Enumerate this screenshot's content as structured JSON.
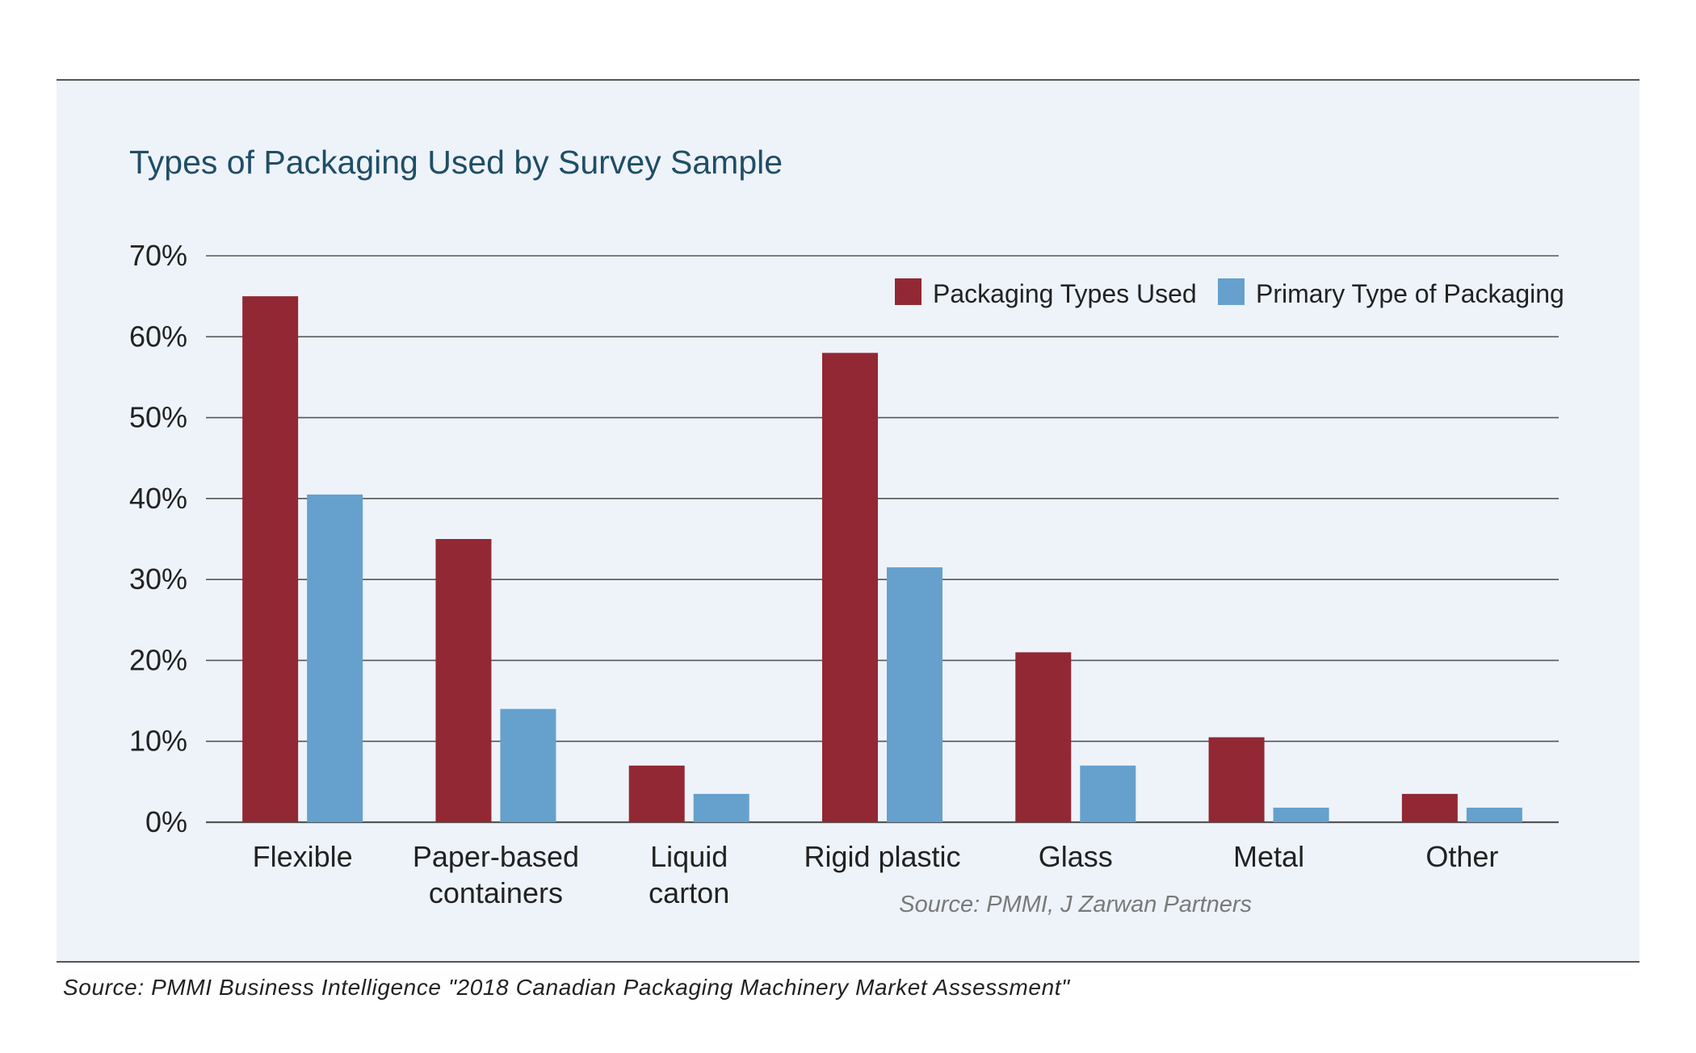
{
  "colors": {
    "panel_background": "#eef3fa",
    "series_used": "#922833",
    "series_primary": "#66a0cc",
    "title": "#1f4e66",
    "gridline": "#555555"
  },
  "footer": {
    "source": "Source: PMMI Business Intelligence \"2018 Canadian Packaging Machinery Market Assessment\""
  },
  "chart_data": {
    "type": "bar",
    "title": "Types of Packaging Used by Survey Sample",
    "source_note": "Source: PMMI, J Zarwan Partners",
    "categories": [
      [
        "Flexible"
      ],
      [
        "Paper-based",
        "containers"
      ],
      [
        "Liquid",
        "carton"
      ],
      [
        "Rigid plastic"
      ],
      [
        "Glass"
      ],
      [
        "Metal"
      ],
      [
        "Other"
      ]
    ],
    "series": [
      {
        "name": "Packaging Types Used",
        "color": "#922833",
        "values": [
          65,
          35,
          7,
          58,
          21,
          10.5,
          3.5
        ]
      },
      {
        "name": "Primary Type of Packaging",
        "color": "#66a0cc",
        "values": [
          40.5,
          14,
          3.5,
          31.5,
          7,
          1.8,
          1.8
        ]
      }
    ],
    "ylim": [
      0,
      70
    ],
    "yticks": [
      0,
      10,
      20,
      30,
      40,
      50,
      60,
      70
    ],
    "ytick_format": "{v}%",
    "grid": true,
    "legend_position": "top-right"
  }
}
